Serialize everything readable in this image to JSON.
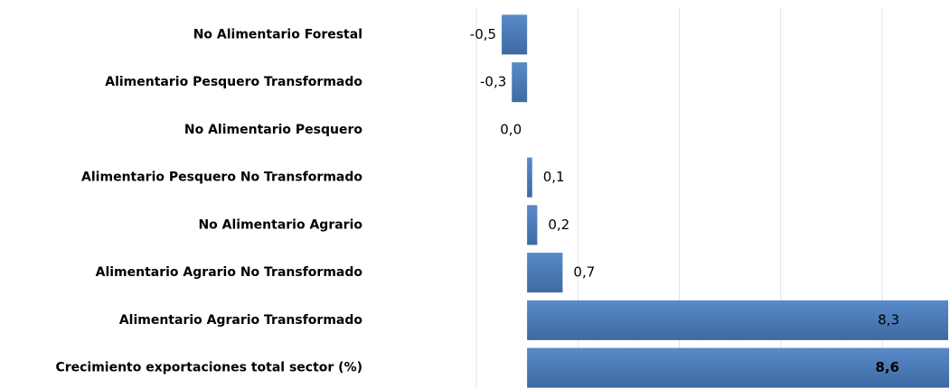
{
  "chart_data": {
    "type": "hbar",
    "categories": [
      "No Alimentario Forestal",
      "Alimentario Pesquero Transformado",
      "No Alimentario Pesquero",
      "Alimentario Pesquero No Transformado",
      "No Alimentario Agrario",
      "Alimentario Agrario No Transformado",
      "Alimentario Agrario Transformado",
      "Crecimiento exportaciones total sector (%)"
    ],
    "values": [
      -0.5,
      -0.3,
      0.0,
      0.1,
      0.2,
      0.7,
      8.3,
      8.6
    ],
    "value_labels": [
      "-0,5",
      "-0,3",
      "0,0",
      "0,1",
      "0,2",
      "0,7",
      "8,3",
      "8,6"
    ],
    "color": "#4f81bd",
    "xlim": [
      -1,
      8.3
    ],
    "xticks": [
      -1,
      1,
      3,
      5,
      7
    ],
    "grid": true
  }
}
